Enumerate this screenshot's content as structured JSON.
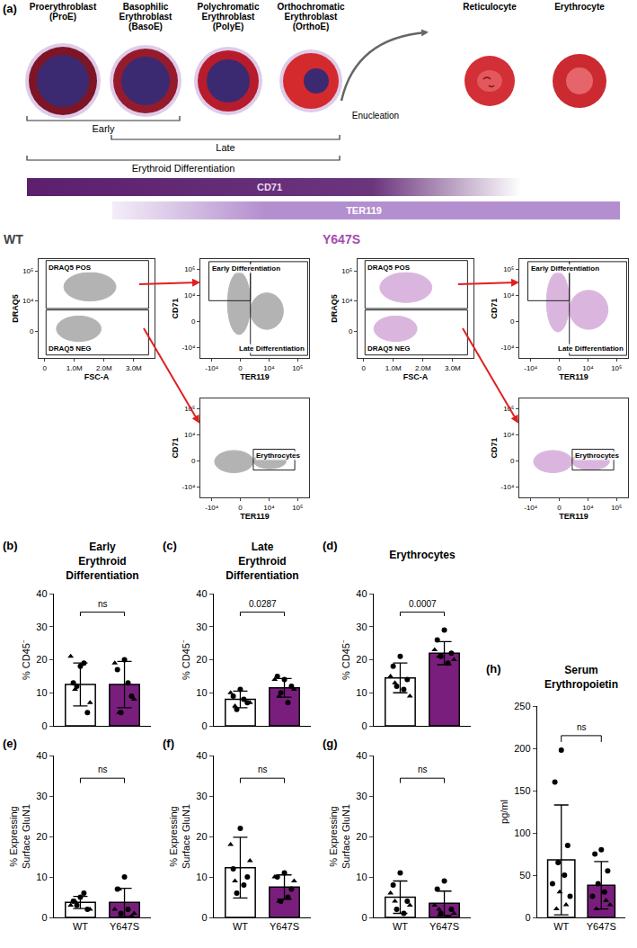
{
  "diagram": {
    "panel": "(a)",
    "stages": [
      {
        "name": "Proerythroblast",
        "abbr": "(ProE)"
      },
      {
        "name": "Basophilic Erythroblast",
        "abbr": "(BasoE)"
      },
      {
        "name": "Polychromatic Erythroblast",
        "abbr": "(PolyE)"
      },
      {
        "name": "Orthochromatic Erythroblast",
        "abbr": "(OrthoE)"
      }
    ],
    "step": "Enucleation",
    "products": [
      "Reticulocyte",
      "Erythrocyte"
    ],
    "brackets": [
      "Early",
      "Late",
      "Erythroid Differentiation"
    ],
    "markers": [
      {
        "name": "CD71",
        "color": "#5b1f6e"
      },
      {
        "name": "TER119",
        "color": "#b48fcf"
      }
    ]
  },
  "flow": [
    {
      "genotype": "WT",
      "color": "#444444",
      "plots": [
        {
          "x_label": "FSC-A",
          "y_label": "DRAQ5",
          "xlim": [
            -200000,
            3700000
          ],
          "xticks": [
            0,
            {
              "value": 1000000,
              "label": "1.0M"
            },
            {
              "value": 2000000,
              "label": "2.0M"
            },
            {
              "value": 3000000,
              "label": "3.0M"
            }
          ],
          "ylim": [
            -0.9,
            2.4
          ],
          "yticks": [
            0,
            {
              "value": 1,
              "label": "10⁴"
            },
            {
              "value": 2,
              "label": "10⁵"
            }
          ],
          "gates": [
            {
              "label": "DRAQ5 POS",
              "x": [
                50000,
                3500000
              ],
              "y": [
                0.75,
                2.35
              ]
            },
            {
              "label": "DRAQ5 NEG",
              "x": [
                50000,
                3500000
              ],
              "y": [
                -0.8,
                0.7
              ]
            }
          ],
          "populations": [
            {
              "x": [
                650000,
                2400000
              ],
              "y": [
                1.0,
                1.95
              ]
            },
            {
              "x": [
                400000,
                1900000
              ],
              "y": [
                -0.35,
                0.5
              ]
            }
          ]
        },
        {
          "x_label": "TER119",
          "y_label": "CD71",
          "xlim": [
            -1.4,
            2.4
          ],
          "xticks": [
            {
              "value": -1,
              "label": "-10⁴"
            },
            0,
            {
              "value": 1,
              "label": "10⁴"
            },
            {
              "value": 2,
              "label": "10⁵"
            }
          ],
          "ylim": [
            -1.4,
            2.4
          ],
          "yticks": [
            {
              "value": -1,
              "label": "-10⁴"
            },
            0,
            {
              "value": 1,
              "label": "10⁴"
            },
            {
              "value": 2,
              "label": "10⁵"
            }
          ],
          "gates": [
            {
              "label": "Early Differentiation",
              "x": [
                -1.1,
                0.35
              ],
              "y": [
                0.8,
                2.3
              ]
            },
            {
              "label": "Late Differentiation",
              "x": [
                0.35,
                2.35
              ],
              "y": [
                -1.3,
                2.3
              ]
            }
          ],
          "populations": [
            {
              "x": [
                -0.45,
                0.35
              ],
              "y": [
                -0.5,
                1.9
              ]
            },
            {
              "x": [
                0.35,
                1.5
              ],
              "y": [
                -0.3,
                1.1
              ]
            }
          ]
        },
        {
          "x_label": "TER119",
          "y_label": "CD71",
          "xlim": [
            -1.4,
            2.4
          ],
          "xticks": [
            {
              "value": -1,
              "label": "-10⁴"
            },
            0,
            {
              "value": 1,
              "label": "10⁴"
            },
            {
              "value": 2,
              "label": "10⁵"
            }
          ],
          "ylim": [
            -1.4,
            2.4
          ],
          "yticks": [
            {
              "value": -1,
              "label": "-10⁴"
            },
            0,
            {
              "value": 1,
              "label": "10⁴"
            },
            {
              "value": 2,
              "label": "10⁵"
            }
          ],
          "gates": [
            {
              "label": "Erythrocytes",
              "x": [
                0.45,
                1.9
              ],
              "y": [
                -0.35,
                0.45
              ]
            }
          ],
          "populations": [
            {
              "x": [
                -0.9,
                0.45
              ],
              "y": [
                -0.45,
                0.4
              ]
            },
            {
              "x": [
                0.45,
                1.6
              ],
              "y": [
                -0.3,
                0.3
              ]
            }
          ]
        }
      ]
    },
    {
      "genotype": "Y647S",
      "color": "#a44bb0",
      "plots": [
        {
          "x_label": "FSC-A",
          "y_label": "DRAQ5",
          "xlim": [
            -200000,
            3700000
          ],
          "xticks": [
            0,
            {
              "value": 1000000,
              "label": "1.0M"
            },
            {
              "value": 2000000,
              "label": "2.0M"
            },
            {
              "value": 3000000,
              "label": "3.0M"
            }
          ],
          "ylim": [
            -0.9,
            2.4
          ],
          "yticks": [
            0,
            {
              "value": 1,
              "label": "10⁴"
            },
            {
              "value": 2,
              "label": "10⁵"
            }
          ],
          "gates": [
            {
              "label": "DRAQ5 POS",
              "x": [
                50000,
                3500000
              ],
              "y": [
                0.75,
                2.35
              ]
            },
            {
              "label": "DRAQ5 NEG",
              "x": [
                50000,
                3500000
              ],
              "y": [
                -0.8,
                0.7
              ]
            }
          ],
          "populations": [
            {
              "x": [
                550000,
                2300000
              ],
              "y": [
                0.95,
                1.95
              ]
            },
            {
              "x": [
                350000,
                1800000
              ],
              "y": [
                -0.35,
                0.5
              ]
            }
          ]
        },
        {
          "x_label": "TER119",
          "y_label": "CD71",
          "xlim": [
            -1.4,
            2.4
          ],
          "xticks": [
            {
              "value": -1,
              "label": "-10⁴"
            },
            0,
            {
              "value": 1,
              "label": "10⁴"
            },
            {
              "value": 2,
              "label": "10⁵"
            }
          ],
          "ylim": [
            -1.4,
            2.4
          ],
          "yticks": [
            {
              "value": -1,
              "label": "-10⁴"
            },
            0,
            {
              "value": 1,
              "label": "10⁴"
            },
            {
              "value": 2,
              "label": "10⁵"
            }
          ],
          "gates": [
            {
              "label": "Early Differentiation",
              "x": [
                -1.1,
                0.35
              ],
              "y": [
                0.8,
                2.3
              ]
            },
            {
              "label": "Late Differentiation",
              "x": [
                0.35,
                2.35
              ],
              "y": [
                -1.3,
                2.3
              ]
            }
          ],
          "populations": [
            {
              "x": [
                -0.45,
                0.35
              ],
              "y": [
                -0.4,
                1.9
              ]
            },
            {
              "x": [
                0.35,
                1.7
              ],
              "y": [
                -0.3,
                1.2
              ]
            }
          ]
        },
        {
          "x_label": "TER119",
          "y_label": "CD71",
          "xlim": [
            -1.4,
            2.4
          ],
          "xticks": [
            {
              "value": -1,
              "label": "-10⁴"
            },
            0,
            {
              "value": 1,
              "label": "10⁴"
            },
            {
              "value": 2,
              "label": "10⁵"
            }
          ],
          "ylim": [
            -1.4,
            2.4
          ],
          "yticks": [
            {
              "value": -1,
              "label": "-10⁴"
            },
            0,
            {
              "value": 1,
              "label": "10⁴"
            },
            {
              "value": 2,
              "label": "10⁵"
            }
          ],
          "gates": [
            {
              "label": "Erythrocytes",
              "x": [
                0.45,
                1.9
              ],
              "y": [
                -0.35,
                0.45
              ]
            }
          ],
          "populations": [
            {
              "x": [
                -0.9,
                0.45
              ],
              "y": [
                -0.45,
                0.4
              ]
            },
            {
              "x": [
                0.45,
                1.75
              ],
              "y": [
                -0.35,
                0.35
              ]
            }
          ]
        }
      ]
    }
  ],
  "chart_data": [
    {
      "panel": "(b)",
      "type": "bar",
      "title": "Early Erythroid Differentiation",
      "y_label": "% CD45⁻",
      "categories": [
        "WT",
        "Y647S"
      ],
      "values": [
        12.5,
        12.5
      ],
      "errors": [
        6.5,
        7.0
      ],
      "colors": [
        "#ffffff",
        "#7a1e7e"
      ],
      "points": [
        [
          {
            "marker": "circle",
            "values": [
              18,
              13,
              4,
              12,
              19
            ]
          },
          {
            "marker": "triangle",
            "values": [
              21,
              7,
              11
            ]
          }
        ],
        [
          {
            "marker": "circle",
            "values": [
              20,
              17,
              9,
              4,
              13
            ]
          },
          {
            "marker": "triangle",
            "values": [
              19,
              8,
              4
            ]
          }
        ]
      ],
      "comparison": "ns",
      "ylim": [
        0,
        40
      ],
      "yticks": [
        0,
        10,
        20,
        30,
        40
      ],
      "tick_labels": "y"
    },
    {
      "panel": "(c)",
      "type": "bar",
      "title": "Late Erythroid Differentiation",
      "y_label": "% CD45⁻",
      "categories": [
        "WT",
        "Y647S"
      ],
      "values": [
        8.0,
        11.5
      ],
      "errors": [
        2.5,
        2.8
      ],
      "colors": [
        "#ffffff",
        "#7a1e7e"
      ],
      "points": [
        [
          {
            "marker": "circle",
            "values": [
              11,
              9,
              7,
              5,
              8
            ]
          },
          {
            "marker": "triangle",
            "values": [
              10,
              7,
              6
            ]
          }
        ],
        [
          {
            "marker": "circle",
            "values": [
              14,
              15,
              12,
              10,
              7
            ]
          },
          {
            "marker": "triangle",
            "values": [
              14,
              11,
              9
            ]
          }
        ]
      ],
      "comparison": "0.0287",
      "ylim": [
        0,
        40
      ],
      "yticks": [
        0,
        10,
        20,
        30,
        40
      ],
      "tick_labels": "y"
    },
    {
      "panel": "(d)",
      "type": "bar",
      "title": "Erythrocytes",
      "y_label": "% CD45⁻",
      "categories": [
        "WT",
        "Y647S"
      ],
      "values": [
        14.5,
        22.0
      ],
      "errors": [
        4.5,
        3.5
      ],
      "colors": [
        "#ffffff",
        "#7a1e7e"
      ],
      "points": [
        [
          {
            "marker": "circle",
            "values": [
              21,
              18,
              14,
              12,
              11
            ]
          },
          {
            "marker": "triangle",
            "values": [
              15,
              9,
              13
            ]
          }
        ],
        [
          {
            "marker": "circle",
            "values": [
              29,
              26,
              22,
              21,
              19
            ]
          },
          {
            "marker": "triangle",
            "values": [
              23,
              20,
              21
            ]
          }
        ]
      ],
      "comparison": "0.0007",
      "ylim": [
        0,
        40
      ],
      "yticks": [
        0,
        10,
        20,
        30,
        40
      ],
      "tick_labels": "y"
    },
    {
      "panel": "(e)",
      "type": "bar",
      "y_label": "% Expressing Surface GluN1",
      "categories": [
        "WT",
        "Y647S"
      ],
      "values": [
        3.7,
        3.7
      ],
      "errors": [
        1.5,
        3.5
      ],
      "colors": [
        "#ffffff",
        "#7a1e7e"
      ],
      "points": [
        [
          {
            "marker": "circle",
            "values": [
              5,
              4,
              2,
              3,
              6
            ]
          },
          {
            "marker": "triangle",
            "values": [
              3,
              2,
              4
            ]
          }
        ],
        [
          {
            "marker": "circle",
            "values": [
              10,
              7,
              0,
              1,
              2
            ]
          },
          {
            "marker": "triangle",
            "values": [
              2,
              1,
              7
            ]
          }
        ]
      ],
      "comparison": "ns",
      "ylim": [
        0,
        40
      ],
      "yticks": [
        0,
        10,
        20,
        30,
        40
      ]
    },
    {
      "panel": "(f)",
      "type": "bar",
      "y_label": "% Expressing Surface GluN1",
      "categories": [
        "WT",
        "Y647S"
      ],
      "values": [
        12.3,
        7.5
      ],
      "errors": [
        7.5,
        3.0
      ],
      "colors": [
        "#ffffff",
        "#7a1e7e"
      ],
      "points": [
        [
          {
            "marker": "circle",
            "values": [
              22,
              12,
              10,
              6,
              8
            ]
          },
          {
            "marker": "triangle",
            "values": [
              18,
              14,
              9
            ]
          }
        ],
        [
          {
            "marker": "circle",
            "values": [
              11,
              10,
              7,
              4,
              5
            ]
          },
          {
            "marker": "triangle",
            "values": [
              10,
              9,
              4
            ]
          }
        ]
      ],
      "comparison": "ns",
      "ylim": [
        0,
        40
      ],
      "yticks": [
        0,
        10,
        20,
        30,
        40
      ]
    },
    {
      "panel": "(g)",
      "type": "bar",
      "y_label": "% Expressing Surface GluN1",
      "categories": [
        "WT",
        "Y647S"
      ],
      "values": [
        5.0,
        3.5
      ],
      "errors": [
        4.0,
        3.0
      ],
      "colors": [
        "#ffffff",
        "#7a1e7e"
      ],
      "points": [
        [
          {
            "marker": "circle",
            "values": [
              11,
              8,
              4,
              2,
              1
            ]
          },
          {
            "marker": "triangle",
            "values": [
              6,
              3,
              4
            ]
          }
        ],
        [
          {
            "marker": "circle",
            "values": [
              9,
              7,
              2,
              1,
              0
            ]
          },
          {
            "marker": "triangle",
            "values": [
              3,
              1,
              2
            ]
          }
        ]
      ],
      "comparison": "ns",
      "ylim": [
        0,
        40
      ],
      "yticks": [
        0,
        10,
        20,
        30,
        40
      ]
    },
    {
      "panel": "(h)",
      "type": "bar",
      "title": "Serum Erythropoietin",
      "y_label": "pg/ml",
      "categories": [
        "WT",
        "Y647S"
      ],
      "values": [
        68,
        38
      ],
      "errors": [
        65,
        28
      ],
      "colors": [
        "#ffffff",
        "#7a1e7e"
      ],
      "points": [
        [
          {
            "marker": "circle",
            "values": [
              198,
              160,
              85,
              65,
              50,
              40,
              25
            ]
          },
          {
            "marker": "triangle",
            "values": [
              10,
              15,
              30
            ]
          }
        ],
        [
          {
            "marker": "circle",
            "values": [
              80,
              75,
              55,
              40,
              30,
              25
            ]
          },
          {
            "marker": "triangle",
            "values": [
              15,
              10,
              20
            ]
          }
        ]
      ],
      "comparison": "ns",
      "ylim": [
        0,
        250
      ],
      "yticks": [
        0,
        50,
        100,
        150,
        200,
        250
      ]
    }
  ]
}
